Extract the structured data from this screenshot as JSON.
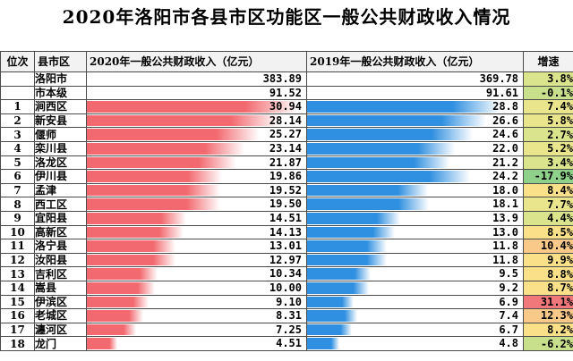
{
  "title": "2020年洛阳市各县市区功能区一般公共财政收入情况",
  "headers": {
    "rank": "位次",
    "district": "县市区",
    "col2020": "2020年一般公共财政收入（亿元）",
    "col2019": "2019年一般公共财政收入（亿元）",
    "growth": "增速"
  },
  "colors": {
    "bar2020": "#f26a70",
    "bar2019": "#2f8fe0",
    "growth_high": "#f0787a",
    "growth_low": "#8fd08a",
    "growth_mid": "#f7e48a"
  },
  "chart_data": {
    "type": "table",
    "title": "2020年洛阳市各县市区功能区一般公共财政收入情况",
    "columns": [
      "位次",
      "县市区",
      "2020年一般公共财政收入（亿元）",
      "2019年一般公共财政收入（亿元）",
      "增速"
    ],
    "rows": [
      {
        "rank": "",
        "name": "洛阳市",
        "v2020": "383.89",
        "v2019": "369.78",
        "growth": "3.8%"
      },
      {
        "rank": "",
        "name": "市本级",
        "v2020": "91.52",
        "v2019": "91.61",
        "growth": "-0.1%"
      },
      {
        "rank": "1",
        "name": "涧西区",
        "v2020": "30.94",
        "v2019": "28.8",
        "growth": "7.4%"
      },
      {
        "rank": "2",
        "name": "新安县",
        "v2020": "28.14",
        "v2019": "26.6",
        "growth": "5.8%"
      },
      {
        "rank": "3",
        "name": "偃师",
        "v2020": "25.27",
        "v2019": "24.6",
        "growth": "2.7%"
      },
      {
        "rank": "4",
        "name": "栾川县",
        "v2020": "23.14",
        "v2019": "22.0",
        "growth": "5.2%"
      },
      {
        "rank": "5",
        "name": "洛龙区",
        "v2020": "21.87",
        "v2019": "21.2",
        "growth": "3.4%"
      },
      {
        "rank": "6",
        "name": "伊川县",
        "v2020": "19.86",
        "v2019": "24.2",
        "growth": "-17.9%"
      },
      {
        "rank": "7",
        "name": "孟津",
        "v2020": "19.52",
        "v2019": "18.0",
        "growth": "8.4%"
      },
      {
        "rank": "8",
        "name": "西工区",
        "v2020": "19.50",
        "v2019": "18.1",
        "growth": "7.7%"
      },
      {
        "rank": "9",
        "name": "宜阳县",
        "v2020": "14.51",
        "v2019": "13.9",
        "growth": "4.4%"
      },
      {
        "rank": "10",
        "name": "高新区",
        "v2020": "14.13",
        "v2019": "13.0",
        "growth": "8.5%"
      },
      {
        "rank": "11",
        "name": "洛宁县",
        "v2020": "13.01",
        "v2019": "11.8",
        "growth": "10.4%"
      },
      {
        "rank": "12",
        "name": "汝阳县",
        "v2020": "12.97",
        "v2019": "11.8",
        "growth": "9.9%"
      },
      {
        "rank": "13",
        "name": "吉利区",
        "v2020": "10.34",
        "v2019": "9.5",
        "growth": "8.8%"
      },
      {
        "rank": "14",
        "name": "嵩县",
        "v2020": "10.00",
        "v2019": "9.2",
        "growth": "8.7%"
      },
      {
        "rank": "15",
        "name": "伊滨区",
        "v2020": "9.10",
        "v2019": "6.9",
        "growth": "31.1%"
      },
      {
        "rank": "16",
        "name": "老城区",
        "v2020": "8.31",
        "v2019": "7.4",
        "growth": "12.3%"
      },
      {
        "rank": "17",
        "name": "瀍河区",
        "v2020": "7.25",
        "v2019": "6.7",
        "growth": "8.2%"
      },
      {
        "rank": "18",
        "name": "龙门",
        "v2020": "4.51",
        "v2019": "4.8",
        "growth": "-6.2%"
      }
    ],
    "bar_max": 32
  }
}
